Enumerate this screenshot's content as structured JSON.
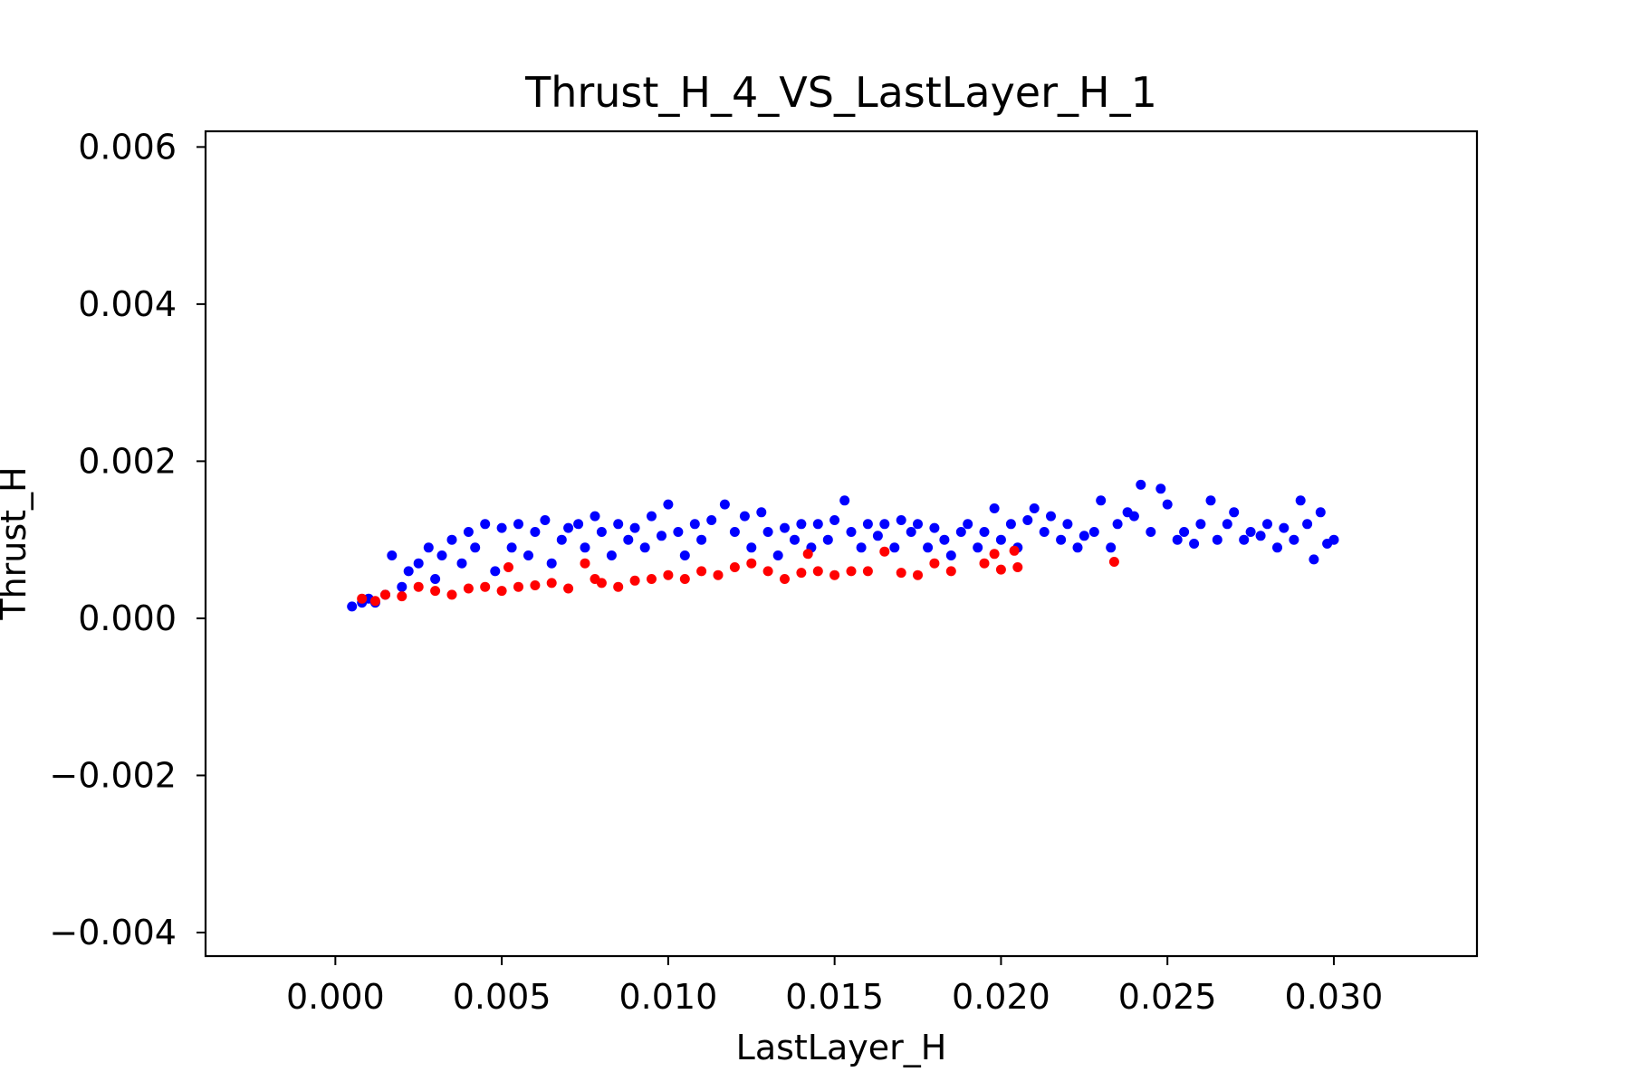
{
  "chart_data": {
    "type": "scatter",
    "title": "Thrust_H_4_VS_LastLayer_H_1",
    "xlabel": "LastLayer_H",
    "ylabel": "Thrust_H",
    "xlim": [
      -0.0039,
      0.0343
    ],
    "ylim": [
      -0.0043,
      0.0062
    ],
    "xticks": [
      0.0,
      0.005,
      0.01,
      0.015,
      0.02,
      0.025,
      0.03
    ],
    "xtick_labels": [
      "0.000",
      "0.005",
      "0.010",
      "0.015",
      "0.020",
      "0.025",
      "0.030"
    ],
    "yticks": [
      -0.004,
      -0.002,
      0.0,
      0.002,
      0.004,
      0.006
    ],
    "ytick_labels": [
      "−0.004",
      "−0.002",
      "0.000",
      "0.002",
      "0.004",
      "0.006"
    ],
    "grid": false,
    "legend": "none",
    "series": [
      {
        "color": "#0000ff",
        "points": [
          [
            0.0005,
            0.00015
          ],
          [
            0.0008,
            0.0002
          ],
          [
            0.001,
            0.00025
          ],
          [
            0.0012,
            0.0002
          ],
          [
            0.0015,
            0.0003
          ],
          [
            0.0017,
            0.0008
          ],
          [
            0.002,
            0.0004
          ],
          [
            0.0022,
            0.0006
          ],
          [
            0.0025,
            0.0007
          ],
          [
            0.0028,
            0.0009
          ],
          [
            0.003,
            0.0005
          ],
          [
            0.0032,
            0.0008
          ],
          [
            0.0035,
            0.001
          ],
          [
            0.0038,
            0.0007
          ],
          [
            0.004,
            0.0011
          ],
          [
            0.0042,
            0.0009
          ],
          [
            0.0045,
            0.0012
          ],
          [
            0.0048,
            0.0006
          ],
          [
            0.005,
            0.00115
          ],
          [
            0.0053,
            0.0009
          ],
          [
            0.0055,
            0.0012
          ],
          [
            0.0058,
            0.0008
          ],
          [
            0.006,
            0.0011
          ],
          [
            0.0063,
            0.00125
          ],
          [
            0.0065,
            0.0007
          ],
          [
            0.0068,
            0.001
          ],
          [
            0.007,
            0.00115
          ],
          [
            0.0073,
            0.0012
          ],
          [
            0.0075,
            0.0009
          ],
          [
            0.0078,
            0.0013
          ],
          [
            0.008,
            0.0011
          ],
          [
            0.0083,
            0.0008
          ],
          [
            0.0085,
            0.0012
          ],
          [
            0.0088,
            0.001
          ],
          [
            0.009,
            0.00115
          ],
          [
            0.0093,
            0.0009
          ],
          [
            0.0095,
            0.0013
          ],
          [
            0.0098,
            0.00105
          ],
          [
            0.01,
            0.00145
          ],
          [
            0.0103,
            0.0011
          ],
          [
            0.0105,
            0.0008
          ],
          [
            0.0108,
            0.0012
          ],
          [
            0.011,
            0.001
          ],
          [
            0.0113,
            0.00125
          ],
          [
            0.0117,
            0.00145
          ],
          [
            0.012,
            0.0011
          ],
          [
            0.0123,
            0.0013
          ],
          [
            0.0125,
            0.0009
          ],
          [
            0.0128,
            0.00135
          ],
          [
            0.013,
            0.0011
          ],
          [
            0.0133,
            0.0008
          ],
          [
            0.0135,
            0.00115
          ],
          [
            0.0138,
            0.001
          ],
          [
            0.014,
            0.0012
          ],
          [
            0.0143,
            0.0009
          ],
          [
            0.0145,
            0.0012
          ],
          [
            0.0148,
            0.001
          ],
          [
            0.015,
            0.00125
          ],
          [
            0.0153,
            0.0015
          ],
          [
            0.0155,
            0.0011
          ],
          [
            0.0158,
            0.0009
          ],
          [
            0.016,
            0.0012
          ],
          [
            0.0163,
            0.00105
          ],
          [
            0.0165,
            0.0012
          ],
          [
            0.0168,
            0.0009
          ],
          [
            0.017,
            0.00125
          ],
          [
            0.0173,
            0.0011
          ],
          [
            0.0175,
            0.0012
          ],
          [
            0.0178,
            0.0009
          ],
          [
            0.018,
            0.00115
          ],
          [
            0.0183,
            0.001
          ],
          [
            0.0185,
            0.0008
          ],
          [
            0.0188,
            0.0011
          ],
          [
            0.019,
            0.0012
          ],
          [
            0.0193,
            0.0009
          ],
          [
            0.0195,
            0.0011
          ],
          [
            0.0198,
            0.0014
          ],
          [
            0.02,
            0.001
          ],
          [
            0.0203,
            0.0012
          ],
          [
            0.0205,
            0.0009
          ],
          [
            0.0208,
            0.00125
          ],
          [
            0.021,
            0.0014
          ],
          [
            0.0213,
            0.0011
          ],
          [
            0.0215,
            0.0013
          ],
          [
            0.0218,
            0.001
          ],
          [
            0.022,
            0.0012
          ],
          [
            0.0223,
            0.0009
          ],
          [
            0.0225,
            0.00105
          ],
          [
            0.0228,
            0.0011
          ],
          [
            0.023,
            0.0015
          ],
          [
            0.0233,
            0.0009
          ],
          [
            0.0235,
            0.0012
          ],
          [
            0.0238,
            0.00135
          ],
          [
            0.024,
            0.0013
          ],
          [
            0.0242,
            0.0017
          ],
          [
            0.0245,
            0.0011
          ],
          [
            0.0248,
            0.00165
          ],
          [
            0.025,
            0.00145
          ],
          [
            0.0253,
            0.001
          ],
          [
            0.0255,
            0.0011
          ],
          [
            0.0258,
            0.00095
          ],
          [
            0.026,
            0.0012
          ],
          [
            0.0263,
            0.0015
          ],
          [
            0.0265,
            0.001
          ],
          [
            0.0268,
            0.0012
          ],
          [
            0.027,
            0.00135
          ],
          [
            0.0273,
            0.001
          ],
          [
            0.0275,
            0.0011
          ],
          [
            0.0278,
            0.00105
          ],
          [
            0.028,
            0.0012
          ],
          [
            0.0283,
            0.0009
          ],
          [
            0.0285,
            0.00115
          ],
          [
            0.0288,
            0.001
          ],
          [
            0.029,
            0.0015
          ],
          [
            0.0292,
            0.0012
          ],
          [
            0.0294,
            0.00075
          ],
          [
            0.0296,
            0.00135
          ],
          [
            0.0298,
            0.00095
          ],
          [
            0.03,
            0.001
          ]
        ]
      },
      {
        "color": "#ff0000",
        "points": [
          [
            0.0008,
            0.00025
          ],
          [
            0.0012,
            0.00022
          ],
          [
            0.0015,
            0.0003
          ],
          [
            0.002,
            0.00028
          ],
          [
            0.0025,
            0.0004
          ],
          [
            0.003,
            0.00035
          ],
          [
            0.0035,
            0.0003
          ],
          [
            0.004,
            0.00038
          ],
          [
            0.0045,
            0.0004
          ],
          [
            0.005,
            0.00035
          ],
          [
            0.0052,
            0.00065
          ],
          [
            0.0055,
            0.0004
          ],
          [
            0.006,
            0.00042
          ],
          [
            0.0065,
            0.00045
          ],
          [
            0.007,
            0.00038
          ],
          [
            0.0075,
            0.0007
          ],
          [
            0.0078,
            0.0005
          ],
          [
            0.008,
            0.00045
          ],
          [
            0.0085,
            0.0004
          ],
          [
            0.009,
            0.00048
          ],
          [
            0.0095,
            0.0005
          ],
          [
            0.01,
            0.00055
          ],
          [
            0.0105,
            0.0005
          ],
          [
            0.011,
            0.0006
          ],
          [
            0.0115,
            0.00055
          ],
          [
            0.012,
            0.00065
          ],
          [
            0.0125,
            0.0007
          ],
          [
            0.013,
            0.0006
          ],
          [
            0.0135,
            0.0005
          ],
          [
            0.014,
            0.00058
          ],
          [
            0.0142,
            0.00082
          ],
          [
            0.0145,
            0.0006
          ],
          [
            0.015,
            0.00055
          ],
          [
            0.0155,
            0.0006
          ],
          [
            0.016,
            0.0006
          ],
          [
            0.0165,
            0.00085
          ],
          [
            0.017,
            0.00058
          ],
          [
            0.0175,
            0.00055
          ],
          [
            0.018,
            0.0007
          ],
          [
            0.0185,
            0.0006
          ],
          [
            0.0195,
            0.0007
          ],
          [
            0.0198,
            0.00082
          ],
          [
            0.02,
            0.00062
          ],
          [
            0.0204,
            0.00086
          ],
          [
            0.0205,
            0.00065
          ],
          [
            0.0234,
            0.00072
          ]
        ]
      }
    ]
  }
}
